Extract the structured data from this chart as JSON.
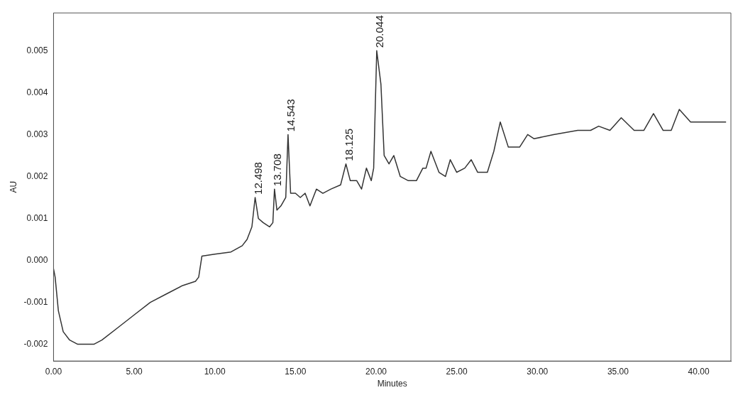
{
  "chart_data": {
    "type": "line",
    "xlabel": "Minutes",
    "ylabel": "AU",
    "xlim": [
      0,
      42
    ],
    "ylim": [
      -0.0024,
      0.0059
    ],
    "xticks": [
      {
        "value": 0,
        "label": "0.00"
      },
      {
        "value": 5,
        "label": "5.00"
      },
      {
        "value": 10,
        "label": "10.00"
      },
      {
        "value": 15,
        "label": "15.00"
      },
      {
        "value": 20,
        "label": "20.00"
      },
      {
        "value": 25,
        "label": "25.00"
      },
      {
        "value": 30,
        "label": "30.00"
      },
      {
        "value": 35,
        "label": "35.00"
      },
      {
        "value": 40,
        "label": "40.00"
      }
    ],
    "yticks": [
      {
        "value": -0.002,
        "label": "-0.002"
      },
      {
        "value": -0.001,
        "label": "-0.001"
      },
      {
        "value": 0,
        "label": "0.000"
      },
      {
        "value": 0.001,
        "label": "0.001"
      },
      {
        "value": 0.002,
        "label": "0.002"
      },
      {
        "value": 0.003,
        "label": "0.003"
      },
      {
        "value": 0.004,
        "label": "0.004"
      },
      {
        "value": 0.005,
        "label": "0.005"
      }
    ],
    "grid": false,
    "legend": false,
    "marker": "none",
    "line_style": "solid",
    "series": [
      {
        "color": "#333333",
        "x": [
          0,
          0.1,
          0.3,
          0.6,
          1.0,
          1.5,
          2.5,
          3.0,
          4,
          5,
          6,
          7,
          8,
          8.8,
          9.0,
          9.2,
          10,
          11,
          11.7,
          12.0,
          12.3,
          12.5,
          12.7,
          13.0,
          13.4,
          13.6,
          13.7,
          13.85,
          14.1,
          14.4,
          14.54,
          14.7,
          15,
          15.3,
          15.6,
          15.9,
          16.3,
          16.7,
          17.2,
          17.8,
          18.13,
          18.4,
          18.8,
          19.1,
          19.4,
          19.7,
          19.85,
          20.04,
          20.3,
          20.5,
          20.8,
          21.1,
          21.5,
          22,
          22.5,
          22.9,
          23.1,
          23.4,
          23.9,
          24.3,
          24.6,
          25,
          25.5,
          25.9,
          26.3,
          26.9,
          27.3,
          27.7,
          28.2,
          28.9,
          29.4,
          29.8,
          31,
          32.5,
          33.3,
          33.8,
          34.5,
          35.2,
          36,
          36.6,
          37.2,
          37.8,
          38.3,
          38.8,
          39.5,
          40.5,
          41.7
        ],
        "values": [
          -0.0002,
          -0.0004,
          -0.0012,
          -0.0017,
          -0.0019,
          -0.002,
          -0.002,
          -0.0019,
          -0.0016,
          -0.0013,
          -0.001,
          -0.0008,
          -0.0006,
          -0.0005,
          -0.0004,
          0.0001,
          0.00015,
          0.0002,
          0.00035,
          0.0005,
          0.0008,
          0.0015,
          0.001,
          0.0009,
          0.0008,
          0.0009,
          0.0017,
          0.0012,
          0.0013,
          0.0015,
          0.003,
          0.0016,
          0.0016,
          0.0015,
          0.0016,
          0.0013,
          0.0017,
          0.0016,
          0.0017,
          0.0018,
          0.0023,
          0.0019,
          0.0019,
          0.0017,
          0.0022,
          0.0019,
          0.0022,
          0.005,
          0.0042,
          0.0025,
          0.0023,
          0.0025,
          0.002,
          0.0019,
          0.0019,
          0.0022,
          0.0022,
          0.0026,
          0.0021,
          0.002,
          0.0024,
          0.0021,
          0.0022,
          0.0024,
          0.0021,
          0.0021,
          0.0026,
          0.0033,
          0.0027,
          0.0027,
          0.003,
          0.0029,
          0.003,
          0.0031,
          0.0031,
          0.0032,
          0.0031,
          0.0034,
          0.0031,
          0.0031,
          0.0035,
          0.0031,
          0.0031,
          0.0036,
          0.0033,
          0.0033,
          0.0033
        ]
      }
    ],
    "annotations": [
      {
        "text": "12.498",
        "x": 12.5,
        "y": 0.0015
      },
      {
        "text": "13.708",
        "x": 13.7,
        "y": 0.0017
      },
      {
        "text": "14.543",
        "x": 14.54,
        "y": 0.003
      },
      {
        "text": "18.125",
        "x": 18.13,
        "y": 0.0023
      },
      {
        "text": "20.044",
        "x": 20.04,
        "y": 0.005
      }
    ]
  }
}
